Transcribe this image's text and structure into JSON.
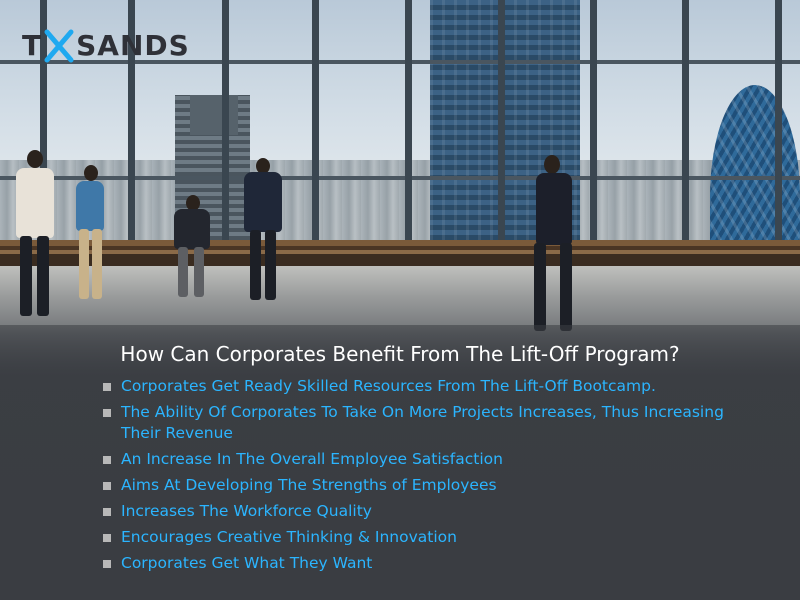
{
  "brand": {
    "logo_first": "T",
    "logo_rest": "SANDS",
    "accent_color": "#1fa9f0",
    "logo_text_color": "#2f3138"
  },
  "headline": "How Can Corporates Benefit From The Lift-Off Program?",
  "bullets": [
    "Corporates Get Ready Skilled Resources From The Lift-Off Bootcamp.",
    "The Ability Of Corporates To Take On More Projects Increases, Thus Increasing Their Revenue",
    "An Increase In The Overall Employee Satisfaction",
    "Aims At Developing The Strengths of Employees",
    "Increases The Workforce Quality",
    "Encourages Creative Thinking & Innovation",
    "Corporates Get What They Want"
  ],
  "colors": {
    "bullet_text": "#2bb5ff",
    "headline_text": "#ffffff",
    "panel_background": "#3a3d42",
    "bullet_marker": "#b8b8b8"
  }
}
